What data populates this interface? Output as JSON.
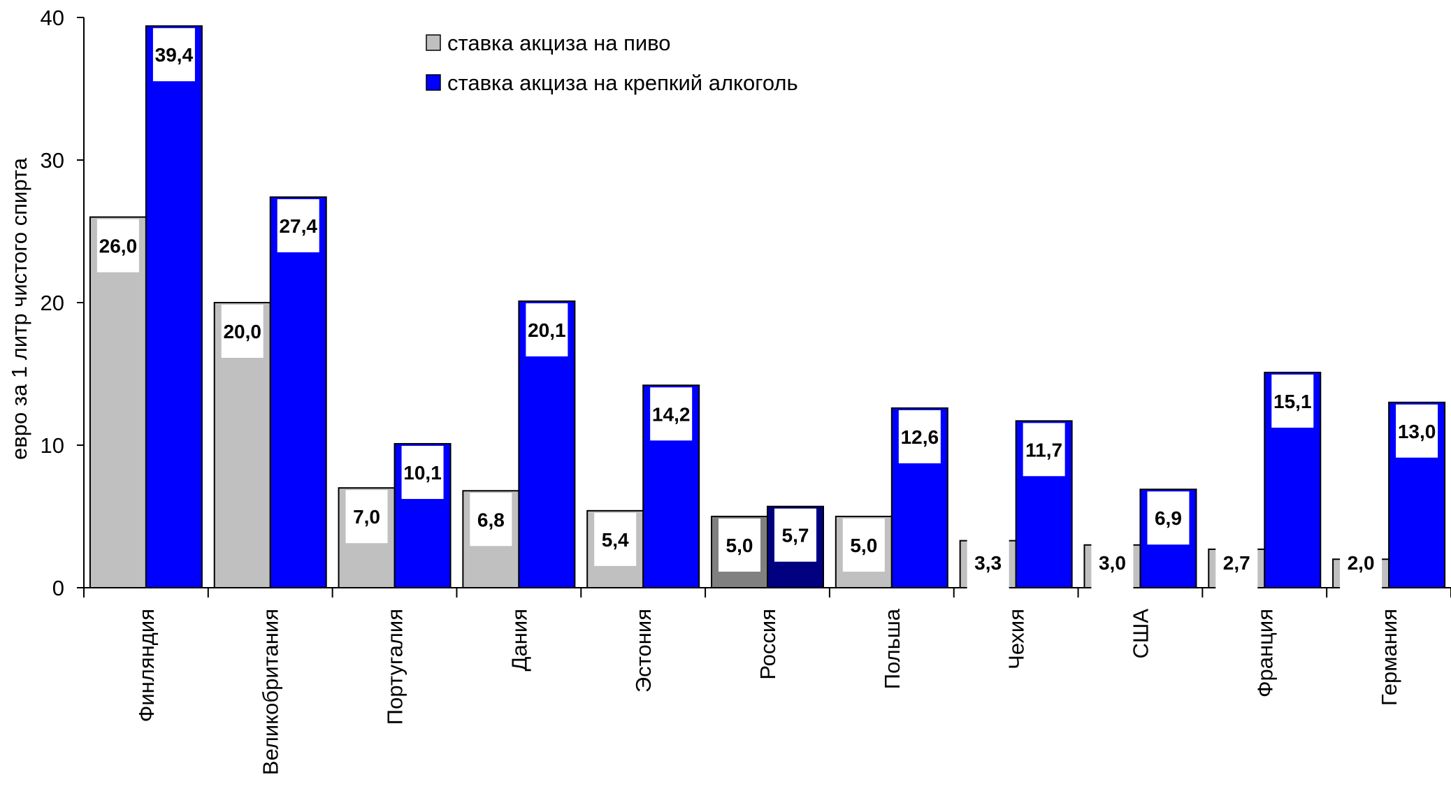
{
  "chart_data": {
    "type": "bar",
    "ylabel": "евро за 1 литр чистого спирта",
    "ylim": [
      0,
      40
    ],
    "yticks": [
      "0",
      "10",
      "20",
      "30",
      "40"
    ],
    "categories": [
      "Финляндия",
      "Великобритания",
      "Португалия",
      "Дания",
      "Эстония",
      "Россия",
      "Польша",
      "Чехия",
      "США",
      "Франция",
      "Германия"
    ],
    "series": [
      {
        "name": "ставка акциза на пиво",
        "color": "#c0c0c0",
        "values": [
          26.0,
          20.0,
          7.0,
          6.8,
          5.4,
          5.0,
          5.0,
          3.3,
          3.0,
          2.7,
          2.0
        ],
        "labels": [
          "26,0",
          "20,0",
          "7,0",
          "6,8",
          "5,4",
          "5,0",
          "5,0",
          "3,3",
          "3,0",
          "2,7",
          "2,0"
        ]
      },
      {
        "name": "ставка акциза на крепкий алкоголь",
        "color": "#0000ff",
        "values": [
          39.4,
          27.4,
          10.1,
          20.1,
          14.2,
          5.7,
          12.6,
          11.7,
          6.9,
          15.1,
          13.0
        ],
        "labels": [
          "39,4",
          "27,4",
          "10,1",
          "20,1",
          "14,2",
          "5,7",
          "12,6",
          "11,7",
          "6,9",
          "15,1",
          "13,0"
        ]
      }
    ],
    "highlight": {
      "category": "Россия",
      "colors": [
        "#808080",
        "#000080"
      ]
    },
    "legend_position": "top-center",
    "grid": false
  }
}
